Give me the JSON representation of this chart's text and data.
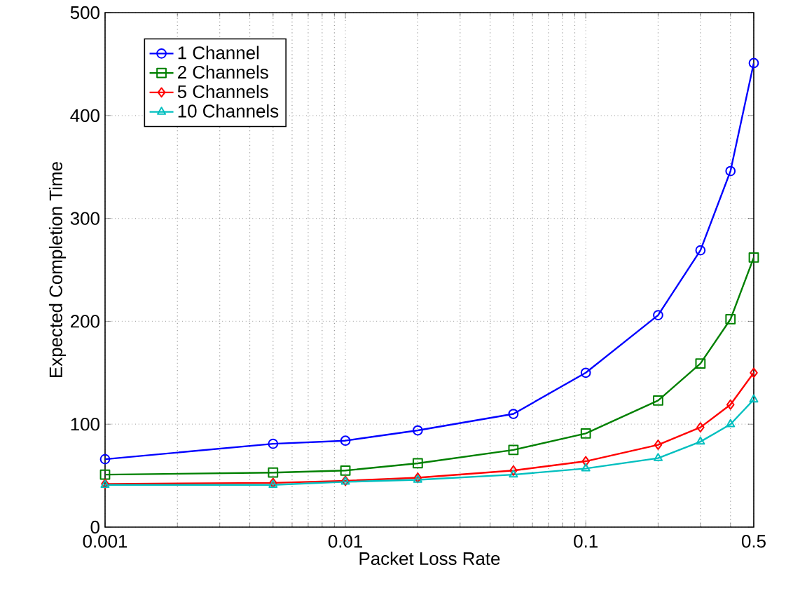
{
  "chart_data": {
    "type": "line",
    "xlabel": "Packet Loss Rate",
    "ylabel": "Expected Completion Time",
    "x": [
      0.001,
      0.005,
      0.01,
      0.02,
      0.05,
      0.1,
      0.2,
      0.3,
      0.4,
      0.5
    ],
    "series": [
      {
        "name": "1 Channel",
        "color": "#0000ff",
        "marker": "circle",
        "values": [
          66,
          81,
          84,
          94,
          110,
          150,
          206,
          269,
          346,
          451
        ]
      },
      {
        "name": "2 Channels",
        "color": "#008000",
        "marker": "square",
        "values": [
          51,
          53,
          55,
          62,
          75,
          91,
          123,
          159,
          202,
          262
        ]
      },
      {
        "name": "5 Channels",
        "color": "#ff0000",
        "marker": "diamond",
        "values": [
          42,
          43,
          45,
          48,
          55,
          64,
          80,
          97,
          119,
          150
        ]
      },
      {
        "name": "10 Channels",
        "color": "#00bfbf",
        "marker": "triangle",
        "values": [
          41,
          41,
          44,
          46,
          51,
          57,
          67,
          83,
          100,
          124
        ]
      }
    ],
    "log": "x",
    "xlim": [
      0.001,
      0.5
    ],
    "xticks": [
      0.001,
      0.01,
      0.1,
      0.5
    ],
    "ylim": [
      0,
      500
    ],
    "yticks": [
      0,
      100,
      200,
      300,
      400,
      500
    ],
    "grid": true,
    "legend": "top left",
    "line_style": "solid"
  }
}
